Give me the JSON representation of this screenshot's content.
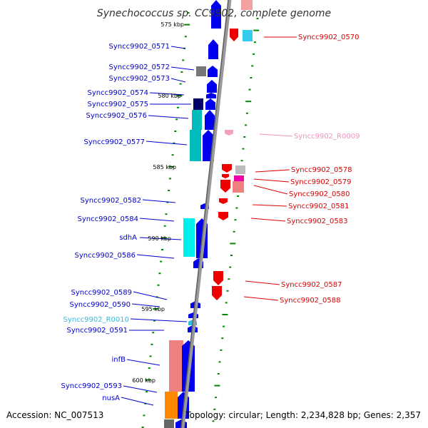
{
  "title": "Synechococcus sp. CC9902, complete genome",
  "accession": "Accession: NC_007513",
  "topology": "Topology: circular; Length: 2,234,828 bp; Genes: 2,357",
  "colors": {
    "backbone": "#808080",
    "forward_label": "#0000cc",
    "reverse_label": "#dd0000",
    "rna_label_pink": "#f090c0",
    "rna_label_cyan": "#33bbdd",
    "tick": "#008800"
  },
  "kbp_marks": [
    "575 kbp",
    "580 kbp",
    "585 kbp",
    "590 kbp",
    "595 kbp",
    "600 kbp"
  ],
  "left_labels": [
    "Syncc9902_0571",
    "Syncc9902_0572",
    "Syncc9902_0573",
    "Syncc9902_0574",
    "Syncc9902_0575",
    "Syncc9902_0576",
    "Syncc9902_0577",
    "Syncc9902_0582",
    "Syncc9902_0584",
    "sdhA",
    "Syncc9902_0586",
    "Syncc9902_0589",
    "Syncc9902_0590",
    "Syncc9902_R0010",
    "Syncc9902_0591",
    "infB",
    "Syncc9902_0593",
    "nusA"
  ],
  "right_labels": [
    "Syncc9902_0570",
    "Syncc9902_R0009",
    "Syncc9902_0578",
    "Syncc9902_0579",
    "Syncc9902_0580",
    "Syncc9902_0581",
    "Syncc9902_0583",
    "Syncc9902_0587",
    "Syncc9902_0588"
  ]
}
